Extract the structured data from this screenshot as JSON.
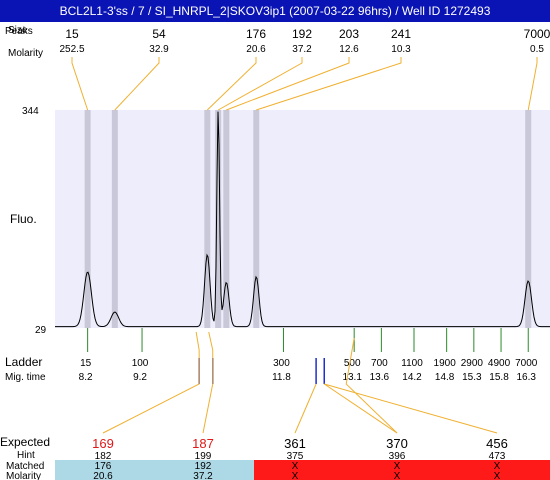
{
  "title": "BCL2L1-3'ss / 7 / SI_HNRPL_2|SKOV3ip1 (2007-03-22 96hrs) / Well ID 1272493",
  "labels": {
    "peaks_row": "Peaks",
    "size_row": "Size",
    "molarity_row": "Molarity",
    "fluo": "Fluo.",
    "ladder": "Ladder",
    "mig_time": "Mig. time",
    "expected": "Expected",
    "hint": "Hint",
    "matched": "Matched",
    "molarity_bottom": "Molarity"
  },
  "colors": {
    "title_bg": "#0a14b4",
    "plot_bg": "#ededfb",
    "band": "#c8c8d8",
    "peak_connector": "#f0b030",
    "ladder_tick": "#2a8a2a",
    "band_marker": "#1e2ed0",
    "expected_highlight": "#e01818",
    "matched_ok": "#add8e6",
    "matched_fail": "#ff1a1a"
  },
  "chart_data": {
    "type": "line",
    "y_axis": {
      "top_label": "344",
      "bottom_label": "29",
      "ylim": [
        29,
        344
      ]
    },
    "x_axis": {
      "xlim": [
        7.6,
        16.7
      ],
      "unit": "Mig. time"
    },
    "ladder": {
      "sizes": [
        "15",
        "100",
        "300",
        "500",
        "700",
        "1100",
        "1900",
        "2900",
        "4900",
        "7000"
      ],
      "mig_times": [
        8.2,
        9.2,
        11.8,
        13.1,
        13.6,
        14.2,
        14.8,
        15.3,
        15.8,
        16.3
      ]
    },
    "peaks": [
      {
        "size": "15",
        "molarity": "252.5",
        "mig_time": 8.2,
        "height": 110
      },
      {
        "size": "54",
        "molarity": "32.9",
        "mig_time": 8.7,
        "height": 52
      },
      {
        "size": "176",
        "molarity": "20.6",
        "mig_time": 10.4,
        "height": 135
      },
      {
        "size": "192",
        "molarity": "37.2",
        "mig_time": 10.6,
        "height": 344
      },
      {
        "size": "203",
        "molarity": "12.6",
        "mig_time": 10.75,
        "height": 95
      },
      {
        "size": "241",
        "molarity": "10.3",
        "mig_time": 11.3,
        "height": 103
      },
      {
        "size": "7000",
        "molarity": "0.5",
        "mig_time": 16.3,
        "height": 97
      }
    ],
    "markers": [
      {
        "mig_time": 10.25,
        "expected_index": 0
      },
      {
        "mig_time": 10.5,
        "expected_index": 1
      },
      {
        "mig_time": 12.4,
        "expected_index": 2
      },
      {
        "mig_time": 12.55,
        "expected_index": 3
      }
    ],
    "expected": [
      {
        "expected": "169",
        "hint": "182",
        "matched": "176",
        "molarity": "20.6",
        "status": "ok",
        "highlight": true
      },
      {
        "expected": "187",
        "hint": "199",
        "matched": "192",
        "molarity": "37.2",
        "status": "ok",
        "highlight": true
      },
      {
        "expected": "361",
        "hint": "375",
        "matched": "X",
        "molarity": "X",
        "status": "fail",
        "highlight": false
      },
      {
        "expected": "370",
        "hint": "396",
        "matched": "X",
        "molarity": "X",
        "status": "fail",
        "highlight": false
      },
      {
        "expected": "456",
        "hint": "473",
        "matched": "X",
        "molarity": "X",
        "status": "fail",
        "highlight": false
      }
    ]
  }
}
